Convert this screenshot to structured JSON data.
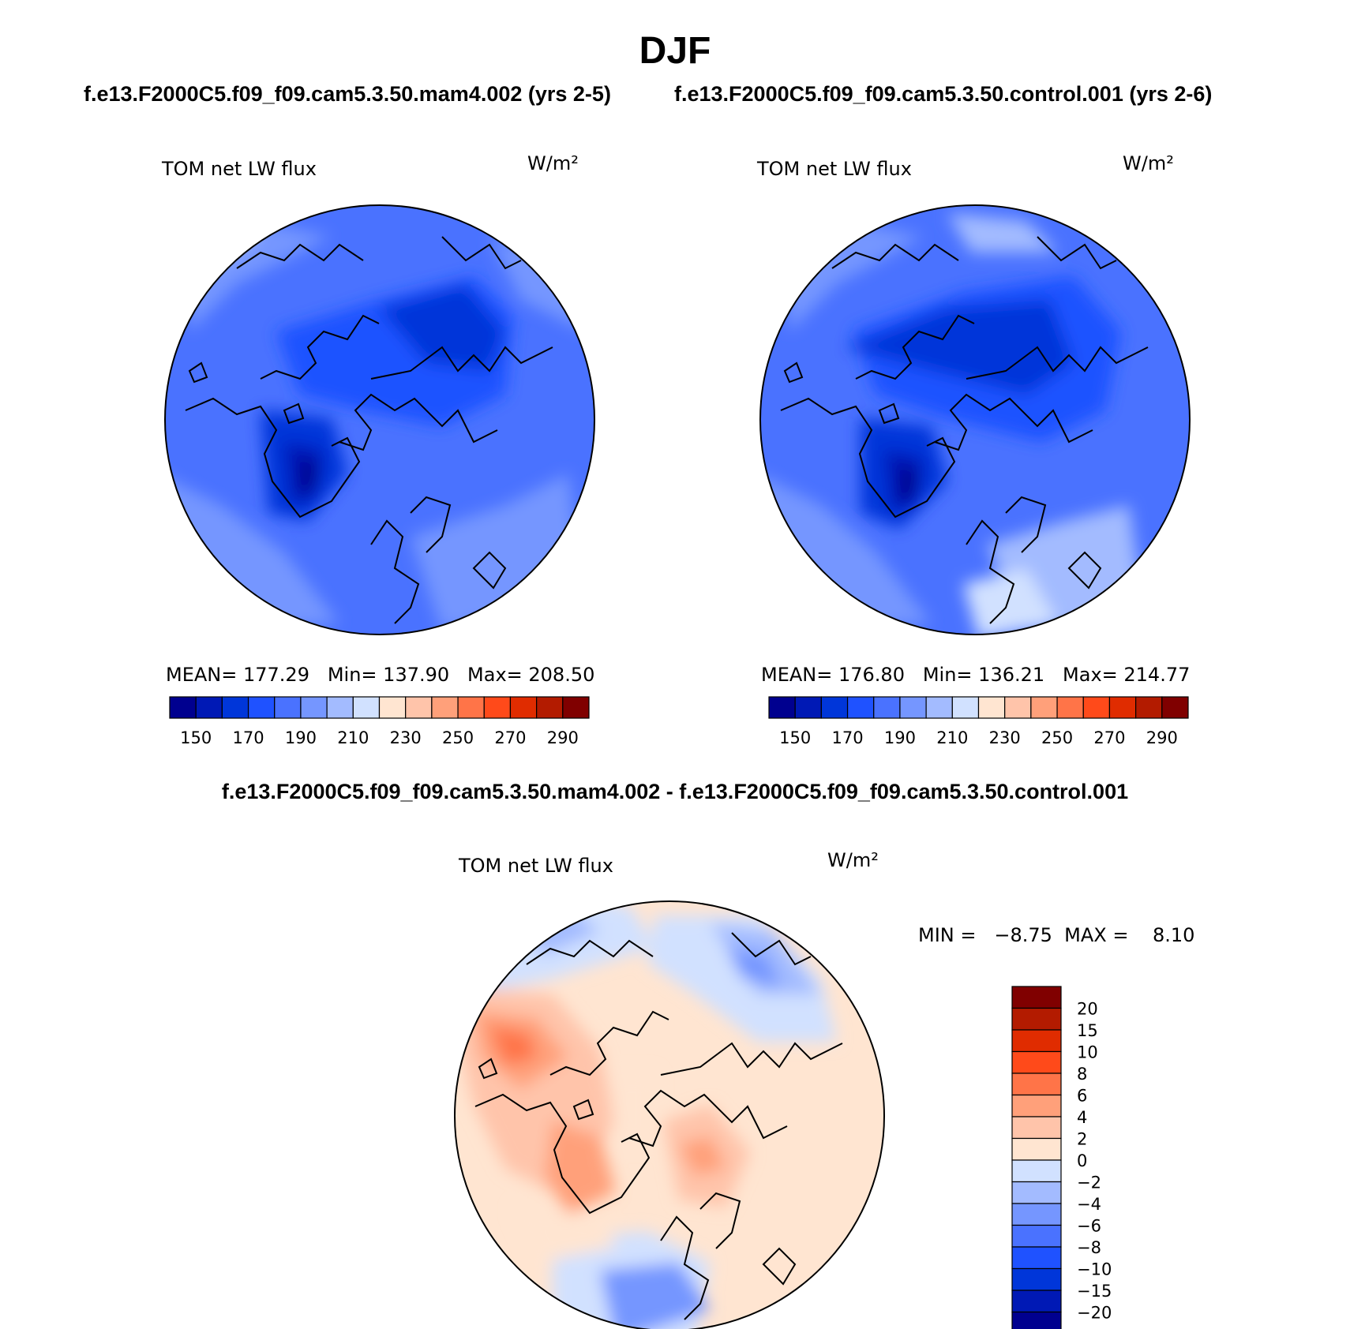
{
  "figure": {
    "title": "DJF",
    "subtitle_left": "f.e13.F2000C5.f09_f09.cam5.3.50.mam4.002 (yrs 2-5)",
    "subtitle_right": "f.e13.F2000C5.f09_f09.cam5.3.50.control.001 (yrs 2-6)",
    "diff_title": "f.e13.F2000C5.f09_f09.cam5.3.50.mam4.002 - f.e13.F2000C5.f09_f09.cam5.3.50.control.001"
  },
  "colors": {
    "abs_scale": [
      "#00008f",
      "#0019b5",
      "#0036d9",
      "#1f52ff",
      "#4a72ff",
      "#7596ff",
      "#a3bbff",
      "#d1e1ff",
      "#ffe5d1",
      "#ffc4aa",
      "#ffa07a",
      "#ff7448",
      "#ff4a1a",
      "#e02c00",
      "#b31b00",
      "#800000"
    ],
    "diff_scale": [
      "#00008f",
      "#0019b5",
      "#0036d9",
      "#1f52ff",
      "#4a72ff",
      "#7596ff",
      "#a3bbff",
      "#d1e1ff",
      "#ffe5d1",
      "#ffc4aa",
      "#ffa07a",
      "#ff7448",
      "#ff4a1a",
      "#e02c00",
      "#b31b00",
      "#800000"
    ]
  },
  "chart_data": [
    {
      "type": "heatmap",
      "projection": "north-polar-stereographic",
      "label": "TOM net LW flux",
      "units": "W/m²",
      "stats": {
        "mean": 177.29,
        "min": 137.9,
        "max": 208.5
      },
      "stats_text": "MEAN= 177.29   Min= 137.90   Max= 208.50",
      "colorbar": {
        "orientation": "horizontal",
        "levels": [
          150,
          160,
          170,
          180,
          190,
          200,
          210,
          220,
          230,
          240,
          250,
          260,
          270,
          280,
          290
        ],
        "tick_labels": [
          "150",
          "170",
          "190",
          "210",
          "230",
          "250",
          "270",
          "290"
        ]
      }
    },
    {
      "type": "heatmap",
      "projection": "north-polar-stereographic",
      "label": "TOM net LW flux",
      "units": "W/m²",
      "stats": {
        "mean": 176.8,
        "min": 136.21,
        "max": 214.77
      },
      "stats_text": "MEAN= 176.80   Min= 136.21   Max= 214.77",
      "colorbar": {
        "orientation": "horizontal",
        "levels": [
          150,
          160,
          170,
          180,
          190,
          200,
          210,
          220,
          230,
          240,
          250,
          260,
          270,
          280,
          290
        ],
        "tick_labels": [
          "150",
          "170",
          "190",
          "210",
          "230",
          "250",
          "270",
          "290"
        ]
      }
    },
    {
      "type": "heatmap",
      "projection": "north-polar-stereographic",
      "label": "TOM net LW flux",
      "units": "W/m²",
      "stats": {
        "min": -8.75,
        "max": 8.1
      },
      "stats_text": "MIN =   −8.75  MAX =    8.10",
      "colorbar": {
        "orientation": "vertical",
        "levels": [
          -20,
          -15,
          -10,
          -8,
          -6,
          -4,
          -2,
          0,
          2,
          4,
          6,
          8,
          10,
          15,
          20
        ],
        "tick_labels": [
          "20",
          "15",
          "10",
          "8",
          "6",
          "4",
          "2",
          "0",
          "−2",
          "−4",
          "−6",
          "−8",
          "−10",
          "−15",
          "−20"
        ]
      }
    }
  ]
}
